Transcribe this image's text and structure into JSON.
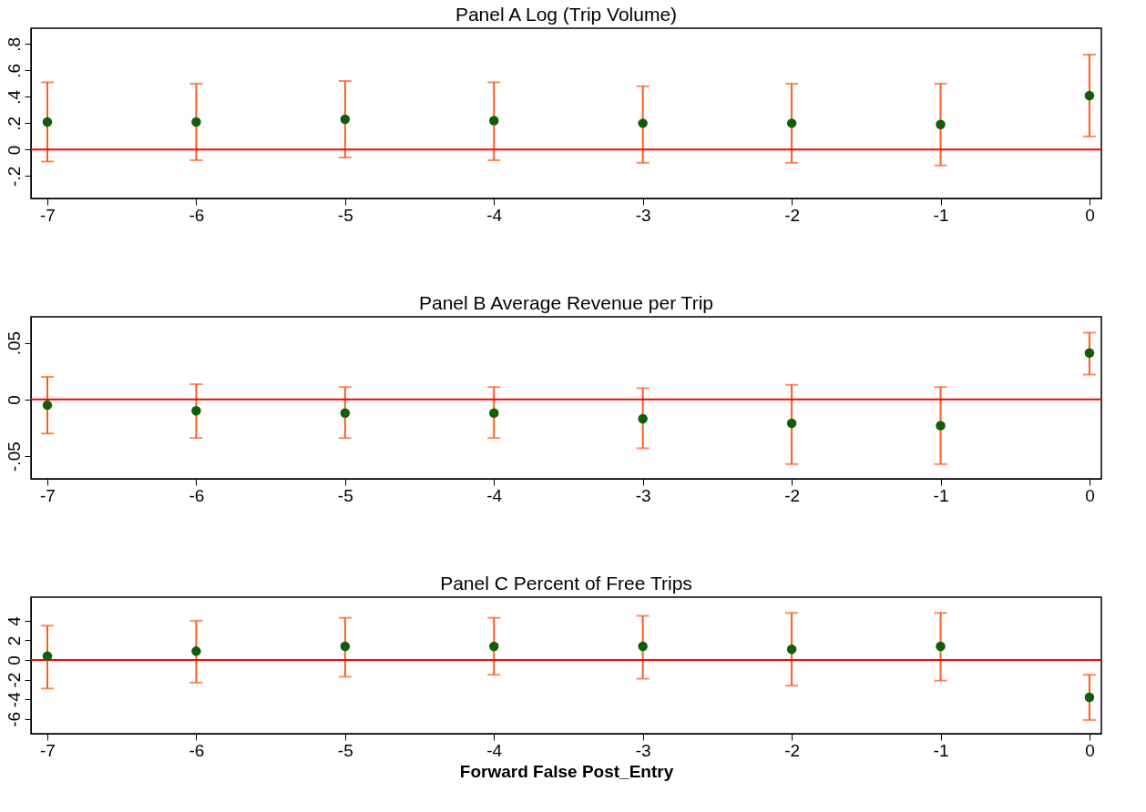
{
  "chart_data": [
    {
      "type": "scatter",
      "title": "Panel A Log (Trip Volume)",
      "x": [
        -7,
        -6,
        -5,
        -4,
        -3,
        -2,
        -1,
        0
      ],
      "xlim": [
        -7.11,
        0.08
      ],
      "xticks": [
        -7,
        -6,
        -5,
        -4,
        -3,
        -2,
        -1,
        0
      ],
      "ylim": [
        -0.37,
        0.92
      ],
      "yticks": [
        {
          "value": -0.2,
          "label": "-.2"
        },
        0,
        {
          "value": 0.2,
          "label": ".2"
        },
        {
          "value": 0.4,
          "label": ".4"
        },
        {
          "value": 0.6,
          "label": ".6"
        },
        {
          "value": 0.8,
          "label": ".8"
        }
      ],
      "marker": "circle",
      "grid": false,
      "series": [
        {
          "color": "#0f5f0a",
          "values": [
            0.21,
            0.21,
            0.23,
            0.22,
            0.2,
            0.2,
            0.19,
            0.41
          ],
          "errors": [
            [
              -0.09,
              0.51
            ],
            [
              -0.08,
              0.5
            ],
            [
              -0.06,
              0.52
            ],
            [
              -0.08,
              0.51
            ],
            [
              -0.1,
              0.48
            ],
            [
              -0.1,
              0.5
            ],
            [
              -0.12,
              0.5
            ],
            [
              0.1,
              0.72
            ]
          ]
        }
      ],
      "ref_lines": [
        {
          "axis": "y",
          "value": 0,
          "color": "#ff0000"
        }
      ]
    },
    {
      "type": "scatter",
      "title": "Panel B Average Revenue per Trip",
      "x": [
        -7,
        -6,
        -5,
        -4,
        -3,
        -2,
        -1,
        0
      ],
      "xlim": [
        -7.11,
        0.08
      ],
      "xticks": [
        -7,
        -6,
        -5,
        -4,
        -3,
        -2,
        -1,
        0
      ],
      "ylim": [
        -0.07,
        0.073
      ],
      "yticks": [
        {
          "value": -0.05,
          "label": "-.05"
        },
        0,
        {
          "value": 0.05,
          "label": ".05"
        }
      ],
      "marker": "circle",
      "grid": false,
      "series": [
        {
          "color": "#0f5f0a",
          "values": [
            -0.005,
            -0.01,
            -0.012,
            -0.012,
            -0.017,
            -0.021,
            -0.023,
            0.041
          ],
          "errors": [
            [
              -0.03,
              0.02
            ],
            [
              -0.034,
              0.0135
            ],
            [
              -0.034,
              0.011
            ],
            [
              -0.034,
              0.011
            ],
            [
              -0.043,
              0.01
            ],
            [
              -0.057,
              0.013
            ],
            [
              -0.057,
              0.011
            ],
            [
              0.022,
              0.059
            ]
          ]
        }
      ],
      "ref_lines": [
        {
          "axis": "y",
          "value": 0,
          "color": "#ff0000"
        }
      ]
    },
    {
      "type": "scatter",
      "title": "Panel C Percent of Free Trips",
      "xlabel": "Forward False Post_Entry",
      "x": [
        -7,
        -6,
        -5,
        -4,
        -3,
        -2,
        -1,
        0
      ],
      "xlim": [
        -7.11,
        0.08
      ],
      "xticks": [
        -7,
        -6,
        -5,
        -4,
        -3,
        -2,
        -1,
        0
      ],
      "ylim": [
        -7.5,
        6.4
      ],
      "yticks": [
        -6,
        -4,
        -2,
        0,
        2,
        4
      ],
      "marker": "circle",
      "grid": false,
      "series": [
        {
          "color": "#0f5f0a",
          "values": [
            0.4,
            0.9,
            1.4,
            1.4,
            1.4,
            1.1,
            1.4,
            -3.8
          ],
          "errors": [
            [
              -2.9,
              3.5
            ],
            [
              -2.3,
              4.0
            ],
            [
              -1.7,
              4.3
            ],
            [
              -1.5,
              4.3
            ],
            [
              -1.9,
              4.5
            ],
            [
              -2.6,
              4.8
            ],
            [
              -2.1,
              4.8
            ],
            [
              -6.1,
              -1.5
            ]
          ]
        }
      ],
      "ref_lines": [
        {
          "axis": "y",
          "value": 0,
          "color": "#ff0000"
        }
      ]
    }
  ]
}
